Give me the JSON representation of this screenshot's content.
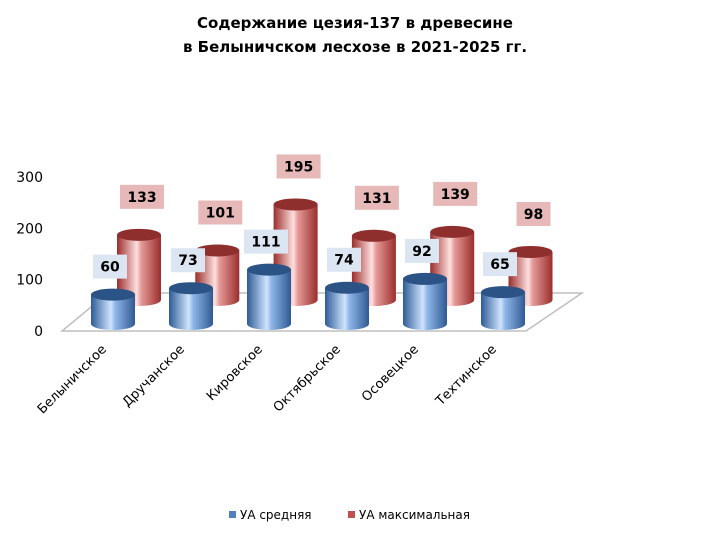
{
  "chart_data": {
    "type": "bar",
    "title": [
      "Содержание цезия-137 в древесине",
      "в Белыничском лесхозе в 2021-2025 гг."
    ],
    "categories": [
      "Белыничское",
      "Дручанское",
      "Кировское",
      "Октябрьское",
      "Осовецкое",
      "Техтинское"
    ],
    "series": [
      {
        "name": "УА средняя",
        "values": [
          60,
          73,
          111,
          74,
          92,
          65
        ],
        "color": "#4f81bd"
      },
      {
        "name": "УА максимальная",
        "values": [
          133,
          101,
          195,
          131,
          139,
          98
        ],
        "color": "#c0504d"
      }
    ],
    "yticks": [
      0,
      100,
      200,
      300
    ],
    "ylim": [
      0,
      300
    ],
    "legend": "bottom",
    "grid": false
  }
}
